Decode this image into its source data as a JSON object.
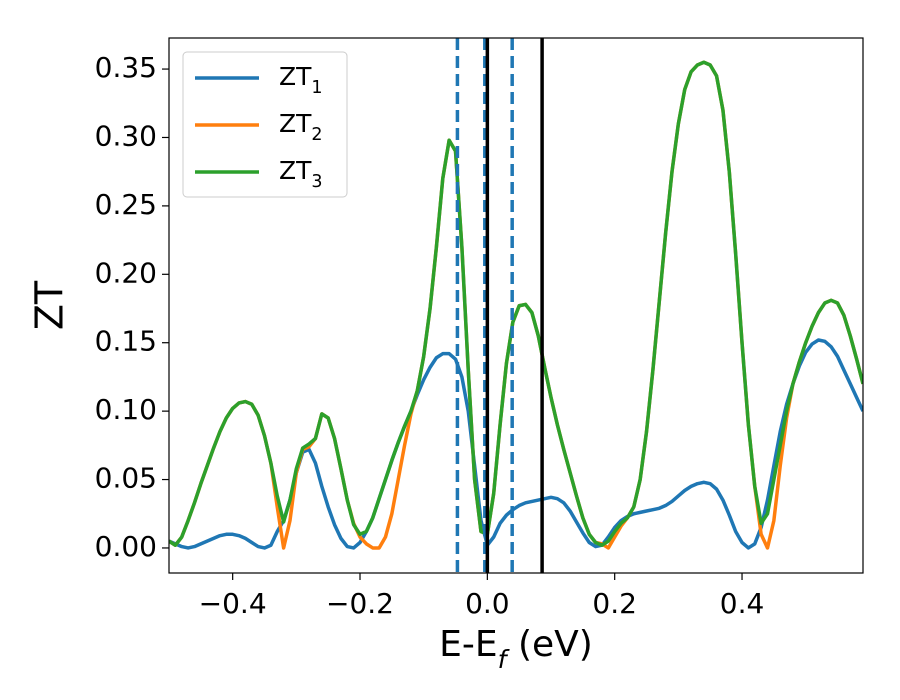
{
  "chart_data": {
    "type": "line",
    "xlabel": "E-E_f (eV)",
    "ylabel": "ZT",
    "x": [
      -0.5,
      -0.49,
      -0.48,
      -0.47,
      -0.46,
      -0.45,
      -0.44,
      -0.43,
      -0.42,
      -0.41,
      -0.4,
      -0.39,
      -0.38,
      -0.37,
      -0.36,
      -0.35,
      -0.34,
      -0.33,
      -0.32,
      -0.31,
      -0.3,
      -0.29,
      -0.28,
      -0.27,
      -0.26,
      -0.25,
      -0.24,
      -0.23,
      -0.22,
      -0.21,
      -0.2,
      -0.19,
      -0.18,
      -0.17,
      -0.16,
      -0.15,
      -0.14,
      -0.13,
      -0.12,
      -0.11,
      -0.1,
      -0.09,
      -0.08,
      -0.07,
      -0.06,
      -0.05,
      -0.04,
      -0.03,
      -0.02,
      -0.01,
      0.0,
      0.01,
      0.02,
      0.03,
      0.04,
      0.05,
      0.06,
      0.07,
      0.08,
      0.09,
      0.1,
      0.11,
      0.12,
      0.13,
      0.14,
      0.15,
      0.16,
      0.17,
      0.18,
      0.19,
      0.2,
      0.21,
      0.22,
      0.23,
      0.24,
      0.25,
      0.26,
      0.27,
      0.28,
      0.29,
      0.3,
      0.31,
      0.32,
      0.33,
      0.34,
      0.35,
      0.36,
      0.37,
      0.38,
      0.39,
      0.4,
      0.41,
      0.42,
      0.43,
      0.44,
      0.45,
      0.46,
      0.47,
      0.48,
      0.49,
      0.5,
      0.51,
      0.52,
      0.53,
      0.54,
      0.55,
      0.56,
      0.57,
      0.58,
      0.59
    ],
    "series": [
      {
        "name": "ZT_1",
        "color": "#1f77b4",
        "values": [
          0.005,
          0.003,
          0.001,
          0.0,
          0.001,
          0.003,
          0.005,
          0.007,
          0.009,
          0.01,
          0.01,
          0.009,
          0.007,
          0.004,
          0.001,
          0.0,
          0.002,
          0.012,
          0.02,
          0.035,
          0.055,
          0.07,
          0.072,
          0.062,
          0.045,
          0.03,
          0.017,
          0.007,
          0.001,
          0.0,
          0.004,
          0.012,
          0.022,
          0.036,
          0.05,
          0.064,
          0.077,
          0.089,
          0.1,
          0.112,
          0.123,
          0.132,
          0.139,
          0.142,
          0.142,
          0.138,
          0.125,
          0.1,
          0.06,
          0.02,
          0.002,
          0.008,
          0.018,
          0.024,
          0.028,
          0.031,
          0.033,
          0.034,
          0.035,
          0.036,
          0.037,
          0.036,
          0.033,
          0.027,
          0.019,
          0.011,
          0.004,
          0.001,
          0.002,
          0.008,
          0.015,
          0.02,
          0.023,
          0.025,
          0.026,
          0.027,
          0.028,
          0.029,
          0.031,
          0.034,
          0.038,
          0.042,
          0.045,
          0.047,
          0.048,
          0.047,
          0.043,
          0.035,
          0.024,
          0.012,
          0.004,
          0.0,
          0.003,
          0.015,
          0.035,
          0.06,
          0.085,
          0.105,
          0.12,
          0.133,
          0.143,
          0.149,
          0.152,
          0.151,
          0.147,
          0.14,
          0.13,
          0.12,
          0.11,
          0.1
        ]
      },
      {
        "name": "ZT_2",
        "color": "#ff7f0e",
        "values": [
          0.005,
          0.002,
          0.008,
          0.02,
          0.033,
          0.047,
          0.06,
          0.073,
          0.085,
          0.095,
          0.102,
          0.106,
          0.107,
          0.105,
          0.097,
          0.082,
          0.062,
          0.03,
          0.0,
          0.02,
          0.055,
          0.072,
          0.074,
          0.08,
          0.098,
          0.095,
          0.08,
          0.058,
          0.035,
          0.018,
          0.008,
          0.003,
          0.0,
          0.0,
          0.008,
          0.025,
          0.05,
          0.075,
          0.098,
          0.115,
          0.14,
          0.175,
          0.22,
          0.27,
          0.298,
          0.29,
          0.22,
          0.13,
          0.05,
          0.012,
          0.01,
          0.04,
          0.09,
          0.135,
          0.165,
          0.177,
          0.178,
          0.172,
          0.155,
          0.132,
          0.11,
          0.09,
          0.072,
          0.055,
          0.038,
          0.022,
          0.01,
          0.004,
          0.003,
          0.0,
          0.008,
          0.016,
          0.022,
          0.03,
          0.05,
          0.085,
          0.13,
          0.18,
          0.23,
          0.275,
          0.31,
          0.335,
          0.348,
          0.353,
          0.355,
          0.353,
          0.345,
          0.32,
          0.275,
          0.215,
          0.15,
          0.09,
          0.045,
          0.01,
          0.0,
          0.02,
          0.06,
          0.095,
          0.12,
          0.136,
          0.15,
          0.162,
          0.172,
          0.179,
          0.181,
          0.179,
          0.17,
          0.155,
          0.138,
          0.12
        ]
      },
      {
        "name": "ZT_3",
        "color": "#2ca02c",
        "values": [
          0.005,
          0.002,
          0.008,
          0.02,
          0.033,
          0.047,
          0.06,
          0.073,
          0.085,
          0.095,
          0.102,
          0.106,
          0.107,
          0.105,
          0.097,
          0.082,
          0.062,
          0.038,
          0.019,
          0.035,
          0.058,
          0.073,
          0.076,
          0.08,
          0.098,
          0.095,
          0.08,
          0.058,
          0.035,
          0.017,
          0.01,
          0.012,
          0.022,
          0.036,
          0.05,
          0.064,
          0.077,
          0.089,
          0.1,
          0.115,
          0.14,
          0.175,
          0.22,
          0.27,
          0.298,
          0.29,
          0.22,
          0.13,
          0.05,
          0.012,
          0.01,
          0.04,
          0.09,
          0.135,
          0.165,
          0.177,
          0.178,
          0.172,
          0.155,
          0.132,
          0.11,
          0.09,
          0.072,
          0.055,
          0.038,
          0.022,
          0.01,
          0.004,
          0.002,
          0.005,
          0.012,
          0.018,
          0.022,
          0.03,
          0.05,
          0.085,
          0.13,
          0.18,
          0.23,
          0.275,
          0.31,
          0.335,
          0.348,
          0.353,
          0.355,
          0.353,
          0.345,
          0.32,
          0.275,
          0.215,
          0.15,
          0.09,
          0.045,
          0.018,
          0.025,
          0.05,
          0.075,
          0.1,
          0.12,
          0.136,
          0.15,
          0.162,
          0.172,
          0.179,
          0.181,
          0.179,
          0.17,
          0.155,
          0.138,
          0.12
        ]
      }
    ],
    "reference_lines": [
      {
        "x": -0.047,
        "color": "#1f77b4",
        "dashed": true
      },
      {
        "x": -0.004,
        "color": "#1f77b4",
        "dashed": true
      },
      {
        "x": 0.039,
        "color": "#1f77b4",
        "dashed": true
      },
      {
        "x": 0.0,
        "color": "#000000",
        "dashed": false
      },
      {
        "x": 0.086,
        "color": "#000000",
        "dashed": false
      }
    ],
    "xlim": [
      -0.5,
      0.59
    ],
    "ylim": [
      -0.0183,
      0.3727
    ],
    "xticks": [
      {
        "value": -0.4,
        "label": "−0.4"
      },
      {
        "value": -0.2,
        "label": "−0.2"
      },
      {
        "value": 0.0,
        "label": "0.0"
      },
      {
        "value": 0.2,
        "label": "0.2"
      },
      {
        "value": 0.4,
        "label": "0.4"
      }
    ],
    "yticks": [
      {
        "value": 0.0,
        "label": "0.00"
      },
      {
        "value": 0.05,
        "label": "0.05"
      },
      {
        "value": 0.1,
        "label": "0.10"
      },
      {
        "value": 0.15,
        "label": "0.15"
      },
      {
        "value": 0.2,
        "label": "0.20"
      },
      {
        "value": 0.25,
        "label": "0.25"
      },
      {
        "value": 0.3,
        "label": "0.30"
      },
      {
        "value": 0.35,
        "label": "0.35"
      }
    ],
    "grid": false,
    "legend": "upper left"
  }
}
